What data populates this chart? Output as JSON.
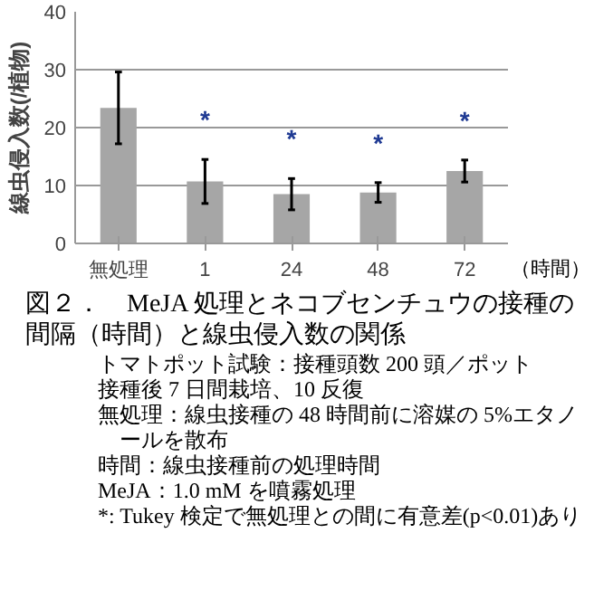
{
  "chart_data": {
    "type": "bar",
    "title": "図２．　MeJA 処理とネコブセンチュウの接種の間隔（時間）と線虫侵入数の関係",
    "xlabel": "（時間）",
    "ylabel": "線虫侵入数(/植物)",
    "categories": [
      "無処理",
      "1",
      "24",
      "48",
      "72"
    ],
    "values": [
      23.4,
      10.7,
      8.5,
      8.8,
      12.5
    ],
    "errors": [
      6.2,
      3.8,
      2.7,
      1.7,
      1.9
    ],
    "value_labels": [
      null,
      "*",
      "*",
      "*",
      "*"
    ],
    "color": "#a6a6a6",
    "ylim": [
      0,
      40
    ],
    "yticks": [
      0,
      10,
      20,
      30,
      40
    ],
    "grid": "y",
    "annotations": [
      "トマトポット試験：接種頭数 200 頭／ポット",
      "接種後 7 日間栽培、10 反復",
      "無処理：線虫接種の 48 時間前に溶媒の 5%エタノールを散布",
      "時間：線虫接種前の処理時間",
      "MeJA：1.0 mM を噴霧処理",
      "*: Tukey 検定で無処理との間に有意差(p<0.01)あり"
    ]
  }
}
